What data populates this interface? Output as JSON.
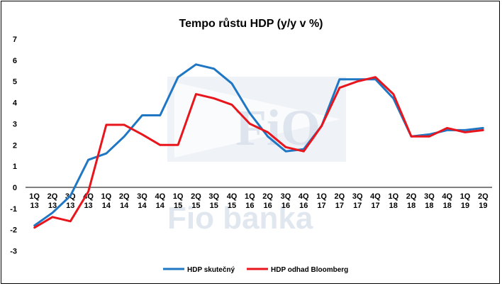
{
  "chart_data": {
    "type": "line",
    "title": "Tempo růstu HDP (y/y v %)",
    "xlabel": "",
    "ylabel": "",
    "ylim": [
      -3,
      7
    ],
    "yticks": [
      -3,
      -2,
      -1,
      0,
      1,
      2,
      3,
      4,
      5,
      6,
      7
    ],
    "grid": false,
    "legend": "bottom",
    "categories": [
      [
        "1Q",
        "13"
      ],
      [
        "2Q",
        "13"
      ],
      [
        "3Q",
        "13"
      ],
      [
        "4Q",
        "13"
      ],
      [
        "1Q",
        "14"
      ],
      [
        "2Q",
        "14"
      ],
      [
        "3Q",
        "14"
      ],
      [
        "4Q",
        "14"
      ],
      [
        "1Q",
        "15"
      ],
      [
        "2Q",
        "15"
      ],
      [
        "3Q",
        "15"
      ],
      [
        "4Q",
        "15"
      ],
      [
        "1Q",
        "16"
      ],
      [
        "2Q",
        "16"
      ],
      [
        "3Q",
        "16"
      ],
      [
        "4Q",
        "16"
      ],
      [
        "1Q",
        "17"
      ],
      [
        "2Q",
        "17"
      ],
      [
        "3Q",
        "17"
      ],
      [
        "4Q",
        "17"
      ],
      [
        "1Q",
        "18"
      ],
      [
        "2Q",
        "18"
      ],
      [
        "3Q",
        "18"
      ],
      [
        "4Q",
        "18"
      ],
      [
        "1Q",
        "19"
      ],
      [
        "2Q",
        "19"
      ]
    ],
    "series": [
      {
        "name": "HDP skutečný",
        "color": "#1f77c4",
        "values": [
          -1.8,
          -1.2,
          -0.4,
          1.3,
          1.6,
          2.4,
          3.4,
          3.4,
          5.2,
          5.8,
          5.6,
          4.9,
          3.5,
          2.4,
          1.7,
          1.8,
          2.9,
          5.1,
          5.1,
          5.1,
          4.2,
          2.4,
          2.5,
          2.7,
          2.7,
          2.8
        ]
      },
      {
        "name": "HDP odhad Bloomberg",
        "color": "#e8161c",
        "values": [
          -1.9,
          -1.4,
          -1.6,
          -0.2,
          2.95,
          2.95,
          2.5,
          2.0,
          2.0,
          4.4,
          4.2,
          3.9,
          3.0,
          2.6,
          1.9,
          1.7,
          2.9,
          4.7,
          5.0,
          5.2,
          4.4,
          2.4,
          2.4,
          2.8,
          2.6,
          2.7
        ]
      }
    ]
  },
  "watermark": {
    "logo_text": "FiO",
    "brand_text": "Fio banka",
    "color": "#d4dde8"
  }
}
